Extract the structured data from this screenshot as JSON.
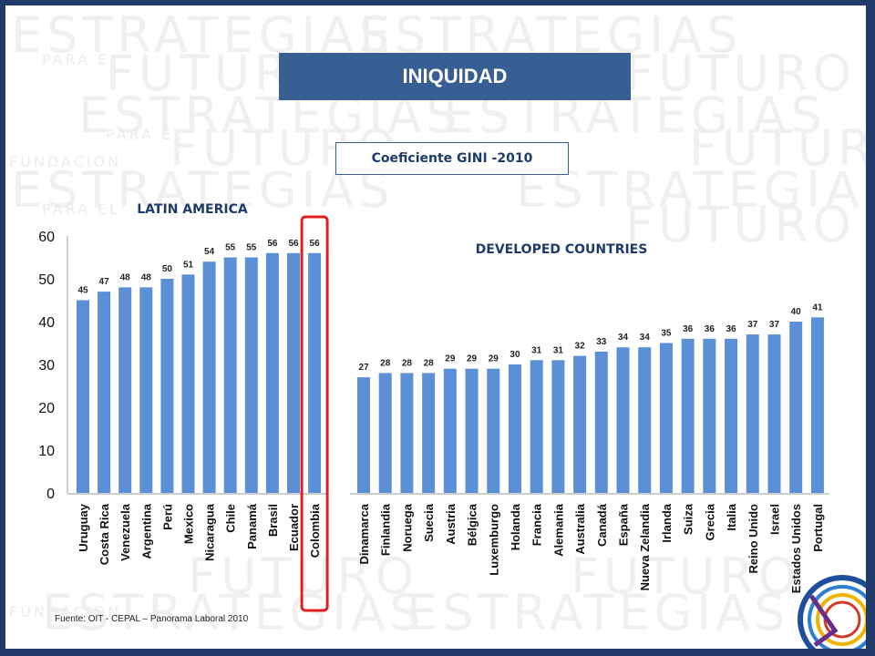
{
  "slide": {
    "title": "INIQUIDAD",
    "subtitle": "Coeficiente GINI -2010",
    "source": "Fuente: OIT - CEPAL – Panorama Laboral 2010",
    "highlight_color": "#e02020",
    "bar_color": "#5b8fd6",
    "header_color": "#375f93"
  },
  "watermark": {
    "word1": "ESTRATEGIAS",
    "word2": "FUTURO",
    "word3": "PARA EL",
    "word4": "FUNDACION"
  },
  "chart_data": [
    {
      "type": "bar",
      "title": "LATIN AMERICA",
      "categories": [
        "Uruguay",
        "Costa Rica",
        "Venezuela",
        "Argentina",
        "Perú",
        "Mexico",
        "Nicaragua",
        "Chile",
        "Panamá",
        "Brasil",
        "Ecuador",
        "Colombia"
      ],
      "values": [
        45,
        47,
        48,
        48,
        50,
        51,
        54,
        55,
        55,
        56,
        56,
        56
      ],
      "ylim": [
        0,
        60
      ],
      "yticks": [
        0,
        10,
        20,
        30,
        40,
        50,
        60
      ],
      "highlighted": "Colombia"
    },
    {
      "type": "bar",
      "title": "DEVELOPED COUNTRIES",
      "categories": [
        "Dinamarca",
        "Finlandia",
        "Noruega",
        "Suecia",
        "Austria",
        "Bélgica",
        "Luxemburgo",
        "Holanda",
        "Francia",
        "Alemania",
        "Australia",
        "Canadá",
        "España",
        "Nueva Zelandia",
        "Irlanda",
        "Suiza",
        "Grecia",
        "Italia",
        "Reino Unido",
        "Israel",
        "Estados Unidos",
        "Portugal"
      ],
      "values": [
        27,
        28,
        28,
        28,
        29,
        29,
        29,
        30,
        31,
        31,
        32,
        33,
        34,
        34,
        35,
        36,
        36,
        36,
        37,
        37,
        40,
        41
      ],
      "ylim": [
        0,
        60
      ]
    }
  ]
}
